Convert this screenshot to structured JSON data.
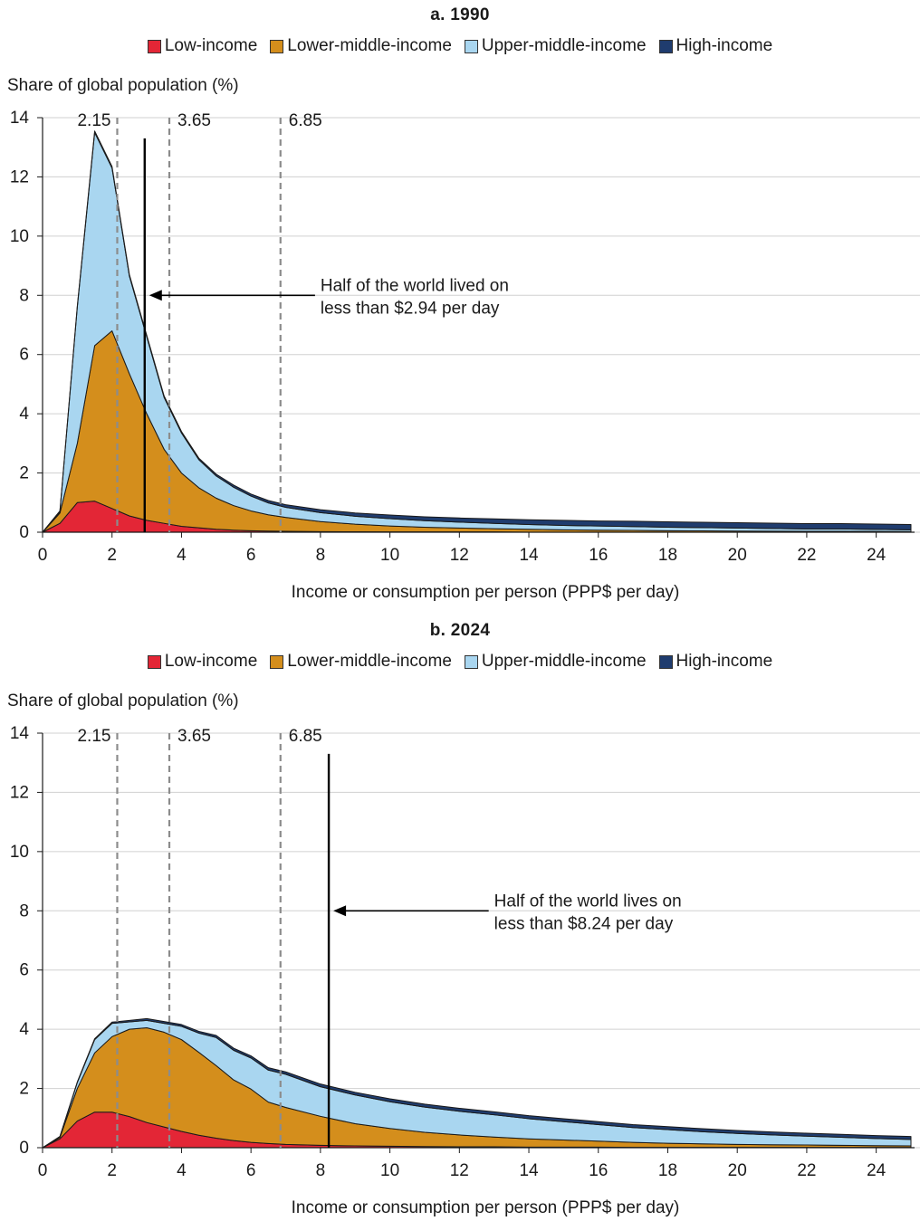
{
  "chart_data": [
    {
      "type": "area",
      "title": "a. 1990",
      "ylabel": "Share of global population (%)",
      "xlabel": "Income or consumption per person (PPP$ per day)",
      "xlim": [
        0,
        25
      ],
      "ylim": [
        0,
        14
      ],
      "x_ticks": [
        0,
        2,
        4,
        6,
        8,
        10,
        12,
        14,
        16,
        18,
        20,
        22,
        24
      ],
      "y_ticks": [
        0,
        2,
        4,
        6,
        8,
        10,
        12,
        14
      ],
      "grid": "horizontal",
      "legend": "top-center",
      "stacked": true,
      "x": [
        0,
        0.5,
        1,
        1.5,
        2,
        2.5,
        3,
        3.5,
        4,
        4.5,
        5,
        5.5,
        6,
        6.5,
        7,
        8,
        9,
        10,
        11,
        12,
        13,
        14,
        15,
        16,
        17,
        18,
        19,
        20,
        21,
        22,
        23,
        24,
        25
      ],
      "series": [
        {
          "name": "Low-income",
          "color": "#e32636",
          "values": [
            0,
            0.3,
            1.0,
            1.05,
            0.8,
            0.55,
            0.4,
            0.3,
            0.2,
            0.15,
            0.1,
            0.07,
            0.05,
            0.04,
            0.03,
            0.02,
            0.015,
            0.01,
            0.01,
            0.01,
            0.01,
            0,
            0,
            0,
            0,
            0,
            0,
            0,
            0,
            0,
            0,
            0,
            0
          ]
        },
        {
          "name": "Lower-middle-income",
          "color": "#d48e1c",
          "values": [
            0,
            0.35,
            2.0,
            5.25,
            6.0,
            4.8,
            3.6,
            2.5,
            1.8,
            1.35,
            1.05,
            0.83,
            0.67,
            0.55,
            0.47,
            0.34,
            0.255,
            0.2,
            0.16,
            0.13,
            0.11,
            0.1,
            0.08,
            0.07,
            0.06,
            0.05,
            0.045,
            0.04,
            0.035,
            0.03,
            0.03,
            0.025,
            0.02
          ]
        },
        {
          "name": "Upper-middle-income",
          "color": "#a9d6f0",
          "values": [
            0,
            0.05,
            4.6,
            7.2,
            5.5,
            3.3,
            2.6,
            1.75,
            1.35,
            0.95,
            0.75,
            0.62,
            0.5,
            0.4,
            0.34,
            0.3,
            0.27,
            0.25,
            0.22,
            0.2,
            0.18,
            0.16,
            0.15,
            0.14,
            0.13,
            0.12,
            0.11,
            0.1,
            0.09,
            0.08,
            0.08,
            0.07,
            0.06
          ]
        },
        {
          "name": "High-income",
          "color": "#1f3c6e",
          "values": [
            0,
            0.02,
            0.03,
            0.05,
            0.05,
            0.05,
            0.05,
            0.05,
            0.05,
            0.05,
            0.06,
            0.07,
            0.07,
            0.08,
            0.09,
            0.1,
            0.11,
            0.12,
            0.13,
            0.14,
            0.15,
            0.16,
            0.17,
            0.17,
            0.18,
            0.18,
            0.18,
            0.18,
            0.18,
            0.18,
            0.18,
            0.18,
            0.18
          ]
        }
      ],
      "poverty_lines": [
        2.15,
        3.65,
        6.85
      ],
      "poverty_line_labels": [
        "2.15",
        "3.65",
        "6.85"
      ],
      "median": 2.94,
      "annotation": [
        "Half of the world lived on",
        "less than $2.94 per day"
      ],
      "annotation_at": {
        "x": 8,
        "y": 8
      }
    },
    {
      "type": "area",
      "title": "b. 2024",
      "ylabel": "Share of global population (%)",
      "xlabel": "Income or consumption per person (PPP$ per day)",
      "xlim": [
        0,
        25
      ],
      "ylim": [
        0,
        14
      ],
      "x_ticks": [
        0,
        2,
        4,
        6,
        8,
        10,
        12,
        14,
        16,
        18,
        20,
        22,
        24
      ],
      "y_ticks": [
        0,
        2,
        4,
        6,
        8,
        10,
        12,
        14
      ],
      "grid": "horizontal",
      "legend": "top-center",
      "stacked": true,
      "x": [
        0,
        0.5,
        1,
        1.5,
        2,
        2.5,
        3,
        3.5,
        4,
        4.5,
        5,
        5.5,
        6,
        6.5,
        7,
        8,
        9,
        10,
        11,
        12,
        13,
        14,
        15,
        16,
        17,
        18,
        19,
        20,
        21,
        22,
        23,
        24,
        25
      ],
      "series": [
        {
          "name": "Low-income",
          "color": "#e32636",
          "values": [
            0,
            0.3,
            0.9,
            1.2,
            1.2,
            1.05,
            0.85,
            0.7,
            0.55,
            0.42,
            0.32,
            0.24,
            0.18,
            0.14,
            0.11,
            0.08,
            0.06,
            0.05,
            0.04,
            0.03,
            0.03,
            0.02,
            0.02,
            0.02,
            0.01,
            0.01,
            0.01,
            0.01,
            0.01,
            0.01,
            0.01,
            0.01,
            0.01
          ]
        },
        {
          "name": "Lower-middle-income",
          "color": "#d48e1c",
          "values": [
            0,
            0.05,
            1.1,
            2.0,
            2.55,
            2.95,
            3.2,
            3.2,
            3.1,
            2.8,
            2.45,
            2.05,
            1.8,
            1.4,
            1.25,
            0.98,
            0.75,
            0.6,
            0.48,
            0.4,
            0.33,
            0.28,
            0.24,
            0.2,
            0.17,
            0.14,
            0.12,
            0.1,
            0.09,
            0.08,
            0.07,
            0.06,
            0.05
          ]
        },
        {
          "name": "Upper-middle-income",
          "color": "#a9d6f0",
          "values": [
            0,
            0.02,
            0.2,
            0.45,
            0.45,
            0.25,
            0.25,
            0.3,
            0.45,
            0.65,
            0.95,
            1.0,
            1.05,
            1.08,
            1.12,
            1.0,
            0.97,
            0.9,
            0.85,
            0.8,
            0.75,
            0.68,
            0.62,
            0.56,
            0.5,
            0.46,
            0.41,
            0.37,
            0.33,
            0.3,
            0.27,
            0.24,
            0.22
          ]
        },
        {
          "name": "High-income",
          "color": "#1f3c6e",
          "values": [
            0,
            0.01,
            0.02,
            0.03,
            0.04,
            0.05,
            0.06,
            0.06,
            0.06,
            0.06,
            0.07,
            0.07,
            0.07,
            0.08,
            0.08,
            0.09,
            0.09,
            0.1,
            0.1,
            0.1,
            0.1,
            0.1,
            0.1,
            0.1,
            0.1,
            0.1,
            0.1,
            0.1,
            0.1,
            0.1,
            0.1,
            0.1,
            0.1
          ]
        }
      ],
      "poverty_lines": [
        2.15,
        3.65,
        6.85
      ],
      "poverty_line_labels": [
        "2.15",
        "3.65",
        "6.85"
      ],
      "median": 8.24,
      "annotation": [
        "Half of the world lives on",
        "less than $8.24 per day"
      ],
      "annotation_at": {
        "x": 13,
        "y": 8
      }
    }
  ]
}
